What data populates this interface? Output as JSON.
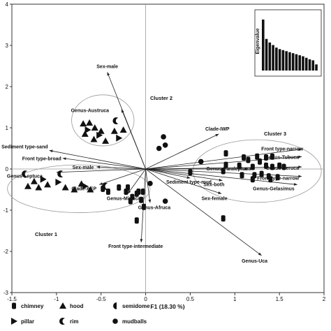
{
  "chart_data": {
    "type": "scatter",
    "title": "",
    "xlabel": "F1 (18.30 %)",
    "ylabel": "F2 (11.93 %)",
    "xlim": [
      -1.5,
      2
    ],
    "ylim": [
      -3,
      4
    ],
    "xticks": [
      "-1.5",
      "-1",
      "-0.5",
      "0",
      "0.5",
      "1",
      "1.5",
      "2"
    ],
    "yticks": [
      "-3",
      "-2",
      "-1",
      "0",
      "1",
      "2",
      "3",
      "4"
    ],
    "vectors": [
      {
        "label": "Sex-male",
        "x": -0.43,
        "y": 2.35
      },
      {
        "label": "Genus-Austruca",
        "x": -0.27,
        "y": 1.45
      },
      {
        "label": "Sediment type-sand",
        "x": -1.08,
        "y": 0.45
      },
      {
        "label": "Front type-broad",
        "x": -0.93,
        "y": 0.26
      },
      {
        "label": "Sex-male",
        "x": -0.55,
        "y": 0.05
      },
      {
        "label": "Clade-AEP",
        "x": -0.52,
        "y": -0.38
      },
      {
        "label": "Genus-Minuca",
        "x": -0.2,
        "y": -0.6
      },
      {
        "label": "Genus-Afruca",
        "x": 0.05,
        "y": -0.82
      },
      {
        "label": "Front type-intermediate",
        "x": -0.05,
        "y": -1.78
      },
      {
        "label": "Clade-IWP",
        "x": 0.82,
        "y": 0.85
      },
      {
        "label": "Sediment type-mud",
        "x": 0.5,
        "y": -0.22
      },
      {
        "label": "Sex-both",
        "x": 0.86,
        "y": -0.28
      },
      {
        "label": "Sex-female",
        "x": 0.85,
        "y": -0.6
      },
      {
        "label": "Genus-Uca",
        "x": 1.3,
        "y": -2.1
      },
      {
        "label": "Genus-Paraleptuca",
        "x": 1.15,
        "y": 0.0
      },
      {
        "label": "Front type-narrow",
        "x": 1.75,
        "y": 0.48
      },
      {
        "label": "Genus-Tubuca",
        "x": 1.75,
        "y": 0.3
      },
      {
        "label": "Genus-Xeruca",
        "x": 1.75,
        "y": 0.05
      },
      {
        "label": "Front type-narrow",
        "x": 1.75,
        "y": -0.18
      },
      {
        "label": "Genus-Gelasimus",
        "x": 1.7,
        "y": -0.38
      },
      {
        "label": "Genus-Leptuca",
        "x": -1.0,
        "y": -0.08
      }
    ],
    "points": {
      "hood_austruca": [
        [
          -0.7,
          1.1
        ],
        [
          -0.63,
          1.12
        ],
        [
          -0.57,
          1.0
        ],
        [
          -0.5,
          0.92
        ],
        [
          -0.68,
          0.85
        ],
        [
          -0.58,
          0.72
        ],
        [
          -0.45,
          0.68
        ],
        [
          -0.35,
          0.92
        ],
        [
          -0.25,
          0.95
        ]
      ],
      "pillar_austruca": [
        [
          -0.65,
          0.95
        ],
        [
          -0.52,
          0.82
        ],
        [
          -0.3,
          0.75
        ]
      ],
      "rim_austruca": [
        [
          -0.33,
          1.17
        ]
      ],
      "hood_left": [
        [
          -1.32,
          -0.42
        ],
        [
          -1.25,
          -0.3
        ],
        [
          -1.2,
          -0.45
        ],
        [
          -1.1,
          -0.38
        ],
        [
          -0.9,
          -0.45
        ],
        [
          -0.8,
          -0.5
        ],
        [
          -0.72,
          -0.36
        ],
        [
          -0.62,
          -0.5
        ]
      ],
      "pillar_left": [
        [
          -1.15,
          -0.25
        ],
        [
          -0.98,
          -0.32
        ],
        [
          -0.68,
          -0.42
        ]
      ],
      "rim_left": [
        [
          -1.35,
          -0.12
        ],
        [
          -0.95,
          -0.12
        ],
        [
          -0.45,
          -0.42
        ]
      ],
      "chimney_minuca": [
        [
          -0.48,
          -0.48
        ],
        [
          -0.42,
          -0.55
        ],
        [
          -0.3,
          -0.45
        ],
        [
          -0.22,
          -0.55
        ],
        [
          -0.15,
          -0.68
        ],
        [
          -0.08,
          -0.55
        ],
        [
          -0.2,
          -0.45
        ],
        [
          -0.1,
          -0.6
        ],
        [
          -0.03,
          -0.55
        ],
        [
          -0.17,
          -0.78
        ],
        [
          -0.05,
          -0.75
        ],
        [
          -0.02,
          -0.92
        ],
        [
          -0.1,
          -1.25
        ],
        [
          0.87,
          -1.2
        ]
      ],
      "mudballs": [
        [
          0.2,
          0.78
        ],
        [
          0.22,
          0.58
        ],
        [
          0.15,
          0.5
        ],
        [
          0.05,
          -0.35
        ],
        [
          0.22,
          -0.78
        ],
        [
          0.62,
          0.18
        ]
      ],
      "chimney_right": [
        [
          0.5,
          -0.08
        ],
        [
          0.87,
          -0.05
        ],
        [
          0.9,
          0.1
        ],
        [
          0.9,
          0.38
        ],
        [
          1.05,
          0.08
        ],
        [
          1.08,
          -0.15
        ],
        [
          1.15,
          0.22
        ],
        [
          1.2,
          0.05
        ],
        [
          1.22,
          -0.15
        ],
        [
          1.28,
          0.18
        ],
        [
          1.3,
          -0.12
        ],
        [
          1.35,
          0.08
        ],
        [
          1.38,
          -0.18
        ],
        [
          1.42,
          0.3
        ],
        [
          1.42,
          0.05
        ],
        [
          1.48,
          -0.2
        ],
        [
          1.5,
          0.08
        ],
        [
          1.35,
          0.28
        ],
        [
          1.4,
          -0.25
        ],
        [
          1.25,
          0.3
        ],
        [
          1.1,
          0.28
        ],
        [
          1.55,
          0.05
        ],
        [
          1.2,
          -0.25
        ]
      ]
    },
    "clusters": [
      {
        "label": "Cluster 1",
        "cx": -0.75,
        "cy": -0.48,
        "rx": 0.8,
        "ry": 0.58
      },
      {
        "label": "Cluster 2",
        "cx": -0.48,
        "cy": 1.18,
        "rx": 0.35,
        "ry": 0.62
      },
      {
        "label": "Cluster 3",
        "cx": 1.25,
        "cy": -0.05,
        "rx": 0.72,
        "ry": 0.76
      }
    ],
    "inset": {
      "ylabel": "Eigenvalue",
      "bars": [
        1.0,
        0.62,
        0.55,
        0.5,
        0.45,
        0.42,
        0.4,
        0.38,
        0.36,
        0.34,
        0.32,
        0.3,
        0.28,
        0.25,
        0.22,
        0.2,
        0.12
      ]
    },
    "legend": [
      {
        "shape": "chimney",
        "label": "chimney"
      },
      {
        "shape": "hood",
        "label": "hood"
      },
      {
        "shape": "semidome",
        "label": "semidome"
      },
      {
        "shape": "pillar",
        "label": "pillar"
      },
      {
        "shape": "rim",
        "label": "rim"
      },
      {
        "shape": "mudballs",
        "label": "mudballs"
      }
    ],
    "grid": false
  }
}
